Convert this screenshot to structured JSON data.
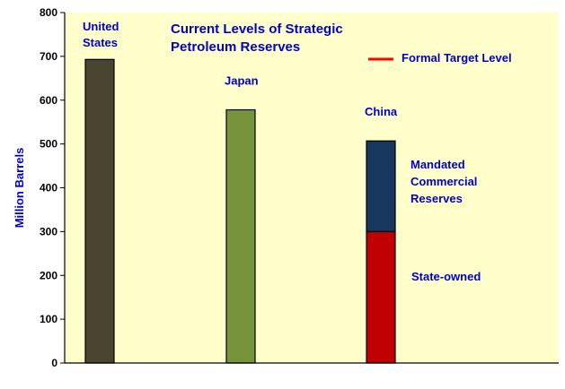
{
  "chart_data": {
    "type": "bar",
    "title_lines": [
      "Current Levels of Strategic",
      "Petroleum Reserves"
    ],
    "ylabel": "Million Barrels",
    "xlabel": "",
    "ylim": [
      0,
      800
    ],
    "yticks": [
      0,
      100,
      200,
      300,
      400,
      500,
      600,
      700,
      800
    ],
    "grid": false,
    "categories": [
      "United States",
      "Japan",
      "China"
    ],
    "category_label_lines": [
      [
        "United",
        "States"
      ],
      [
        "Japan"
      ],
      [
        "China"
      ]
    ],
    "bars": [
      {
        "category": "United States",
        "segments": [
          {
            "value": 693,
            "color": "#4a4530"
          }
        ]
      },
      {
        "category": "Japan",
        "segments": [
          {
            "value": 578,
            "color": "#77933c"
          }
        ]
      },
      {
        "category": "China",
        "segments": [
          {
            "name": "State-owned",
            "value": 300,
            "color": "#c00000"
          },
          {
            "name": "Mandated Commercial Reserves",
            "value": 207,
            "color": "#17375e"
          }
        ]
      }
    ],
    "segment_label_lines": {
      "State-owned": [
        "State-owned"
      ],
      "Mandated Commercial Reserves": [
        "Mandated",
        "Commercial",
        "Reserves"
      ]
    },
    "legend": {
      "label": "Formal Target Level",
      "color": "#ff0000",
      "position": "top-right"
    },
    "colors": {
      "plot_background": "#ffffcc",
      "label_text": "#0000cc"
    }
  }
}
